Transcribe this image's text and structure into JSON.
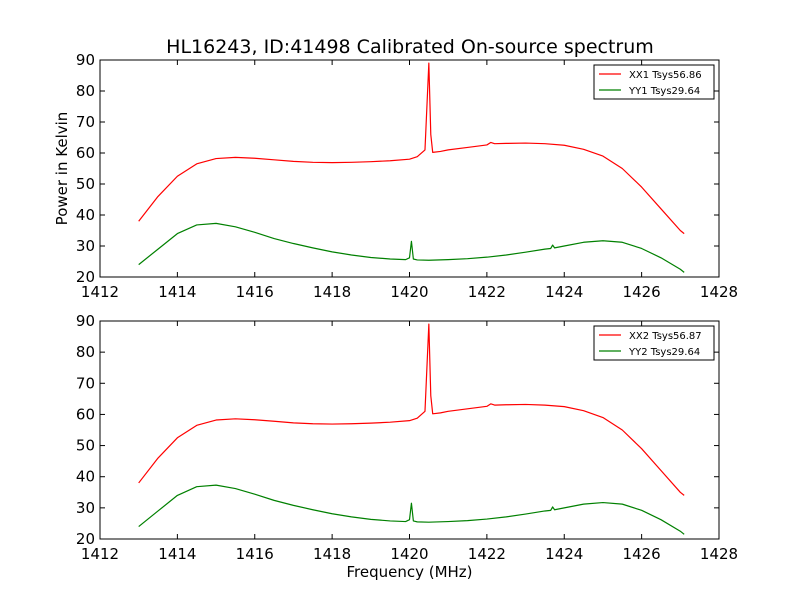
{
  "title": "HL16243, ID:41498 Calibrated On-source spectrum",
  "chart_data": [
    {
      "type": "line",
      "ylabel": "Power in Kelvin",
      "xlabel": "",
      "xlim": [
        1412,
        1428
      ],
      "ylim": [
        20,
        90
      ],
      "xticks": [
        1412,
        1414,
        1416,
        1418,
        1420,
        1422,
        1424,
        1426,
        1428
      ],
      "yticks": [
        20,
        30,
        40,
        50,
        60,
        70,
        80,
        90
      ],
      "legend_position": "top-right",
      "series": [
        {
          "name": "XX1 Tsys56.86",
          "color": "#ff0000",
          "x": [
            1413.0,
            1413.5,
            1414.0,
            1414.5,
            1415.0,
            1415.5,
            1416.0,
            1416.5,
            1417.0,
            1417.5,
            1418.0,
            1418.5,
            1419.0,
            1419.5,
            1420.0,
            1420.2,
            1420.4,
            1420.45,
            1420.5,
            1420.55,
            1420.6,
            1420.8,
            1421.0,
            1421.5,
            1422.0,
            1422.1,
            1422.2,
            1422.5,
            1423.0,
            1423.5,
            1424.0,
            1424.5,
            1425.0,
            1425.5,
            1426.0,
            1426.5,
            1427.0,
            1427.1
          ],
          "y": [
            38,
            46,
            52.5,
            56.5,
            58.2,
            58.6,
            58.3,
            57.8,
            57.3,
            57.0,
            56.9,
            57.0,
            57.2,
            57.5,
            58.0,
            58.8,
            61,
            75,
            89,
            66,
            60.2,
            60.5,
            61.0,
            61.8,
            62.6,
            63.4,
            63.0,
            63.1,
            63.2,
            63.0,
            62.5,
            61.2,
            59.0,
            55.0,
            49.0,
            42.0,
            35.0,
            34.0
          ]
        },
        {
          "name": "YY1 Tsys29.64",
          "color": "#008000",
          "x": [
            1413.0,
            1413.5,
            1414.0,
            1414.5,
            1415.0,
            1415.5,
            1416.0,
            1416.5,
            1417.0,
            1417.5,
            1418.0,
            1418.5,
            1419.0,
            1419.5,
            1419.9,
            1420.0,
            1420.05,
            1420.1,
            1420.2,
            1420.5,
            1421.0,
            1421.5,
            1422.0,
            1422.5,
            1423.0,
            1423.5,
            1423.65,
            1423.7,
            1423.75,
            1424.0,
            1424.5,
            1425.0,
            1425.5,
            1426.0,
            1426.5,
            1427.0,
            1427.1
          ],
          "y": [
            24,
            29,
            34,
            36.8,
            37.3,
            36.2,
            34.4,
            32.4,
            30.8,
            29.4,
            28.1,
            27.1,
            26.3,
            25.8,
            25.6,
            26.2,
            31.5,
            25.8,
            25.5,
            25.4,
            25.6,
            25.9,
            26.4,
            27.1,
            28.0,
            29.0,
            29.2,
            30.3,
            29.4,
            30.0,
            31.2,
            31.7,
            31.2,
            29.2,
            26.2,
            22.5,
            21.5
          ]
        }
      ]
    },
    {
      "type": "line",
      "ylabel": "",
      "xlabel": "Frequency (MHz)",
      "xlim": [
        1412,
        1428
      ],
      "ylim": [
        20,
        90
      ],
      "xticks": [
        1412,
        1414,
        1416,
        1418,
        1420,
        1422,
        1424,
        1426,
        1428
      ],
      "yticks": [
        20,
        30,
        40,
        50,
        60,
        70,
        80,
        90
      ],
      "legend_position": "top-right",
      "series": [
        {
          "name": "XX2 Tsys56.87",
          "color": "#ff0000",
          "x": [
            1413.0,
            1413.5,
            1414.0,
            1414.5,
            1415.0,
            1415.5,
            1416.0,
            1416.5,
            1417.0,
            1417.5,
            1418.0,
            1418.5,
            1419.0,
            1419.5,
            1420.0,
            1420.2,
            1420.4,
            1420.45,
            1420.5,
            1420.55,
            1420.6,
            1420.8,
            1421.0,
            1421.5,
            1422.0,
            1422.1,
            1422.2,
            1422.5,
            1423.0,
            1423.5,
            1424.0,
            1424.5,
            1425.0,
            1425.5,
            1426.0,
            1426.5,
            1427.0,
            1427.1
          ],
          "y": [
            38,
            46,
            52.5,
            56.5,
            58.2,
            58.6,
            58.3,
            57.8,
            57.3,
            57.0,
            56.9,
            57.0,
            57.2,
            57.5,
            58.0,
            58.8,
            61,
            75,
            89,
            66,
            60.2,
            60.5,
            61.0,
            61.8,
            62.6,
            63.4,
            63.0,
            63.1,
            63.2,
            63.0,
            62.5,
            61.2,
            59.0,
            55.0,
            49.0,
            42.0,
            35.0,
            34.0
          ]
        },
        {
          "name": "YY2 Tsys29.64",
          "color": "#008000",
          "x": [
            1413.0,
            1413.5,
            1414.0,
            1414.5,
            1415.0,
            1415.5,
            1416.0,
            1416.5,
            1417.0,
            1417.5,
            1418.0,
            1418.5,
            1419.0,
            1419.5,
            1419.9,
            1420.0,
            1420.05,
            1420.1,
            1420.2,
            1420.5,
            1421.0,
            1421.5,
            1422.0,
            1422.5,
            1423.0,
            1423.5,
            1423.65,
            1423.7,
            1423.75,
            1424.0,
            1424.5,
            1425.0,
            1425.5,
            1426.0,
            1426.5,
            1427.0,
            1427.1
          ],
          "y": [
            24,
            29,
            34,
            36.8,
            37.3,
            36.2,
            34.4,
            32.4,
            30.8,
            29.4,
            28.1,
            27.1,
            26.3,
            25.8,
            25.6,
            26.2,
            31.5,
            25.8,
            25.5,
            25.4,
            25.6,
            25.9,
            26.4,
            27.1,
            28.0,
            29.0,
            29.2,
            30.3,
            29.4,
            30.0,
            31.2,
            31.7,
            31.2,
            29.2,
            26.2,
            22.5,
            21.5
          ]
        }
      ]
    }
  ]
}
